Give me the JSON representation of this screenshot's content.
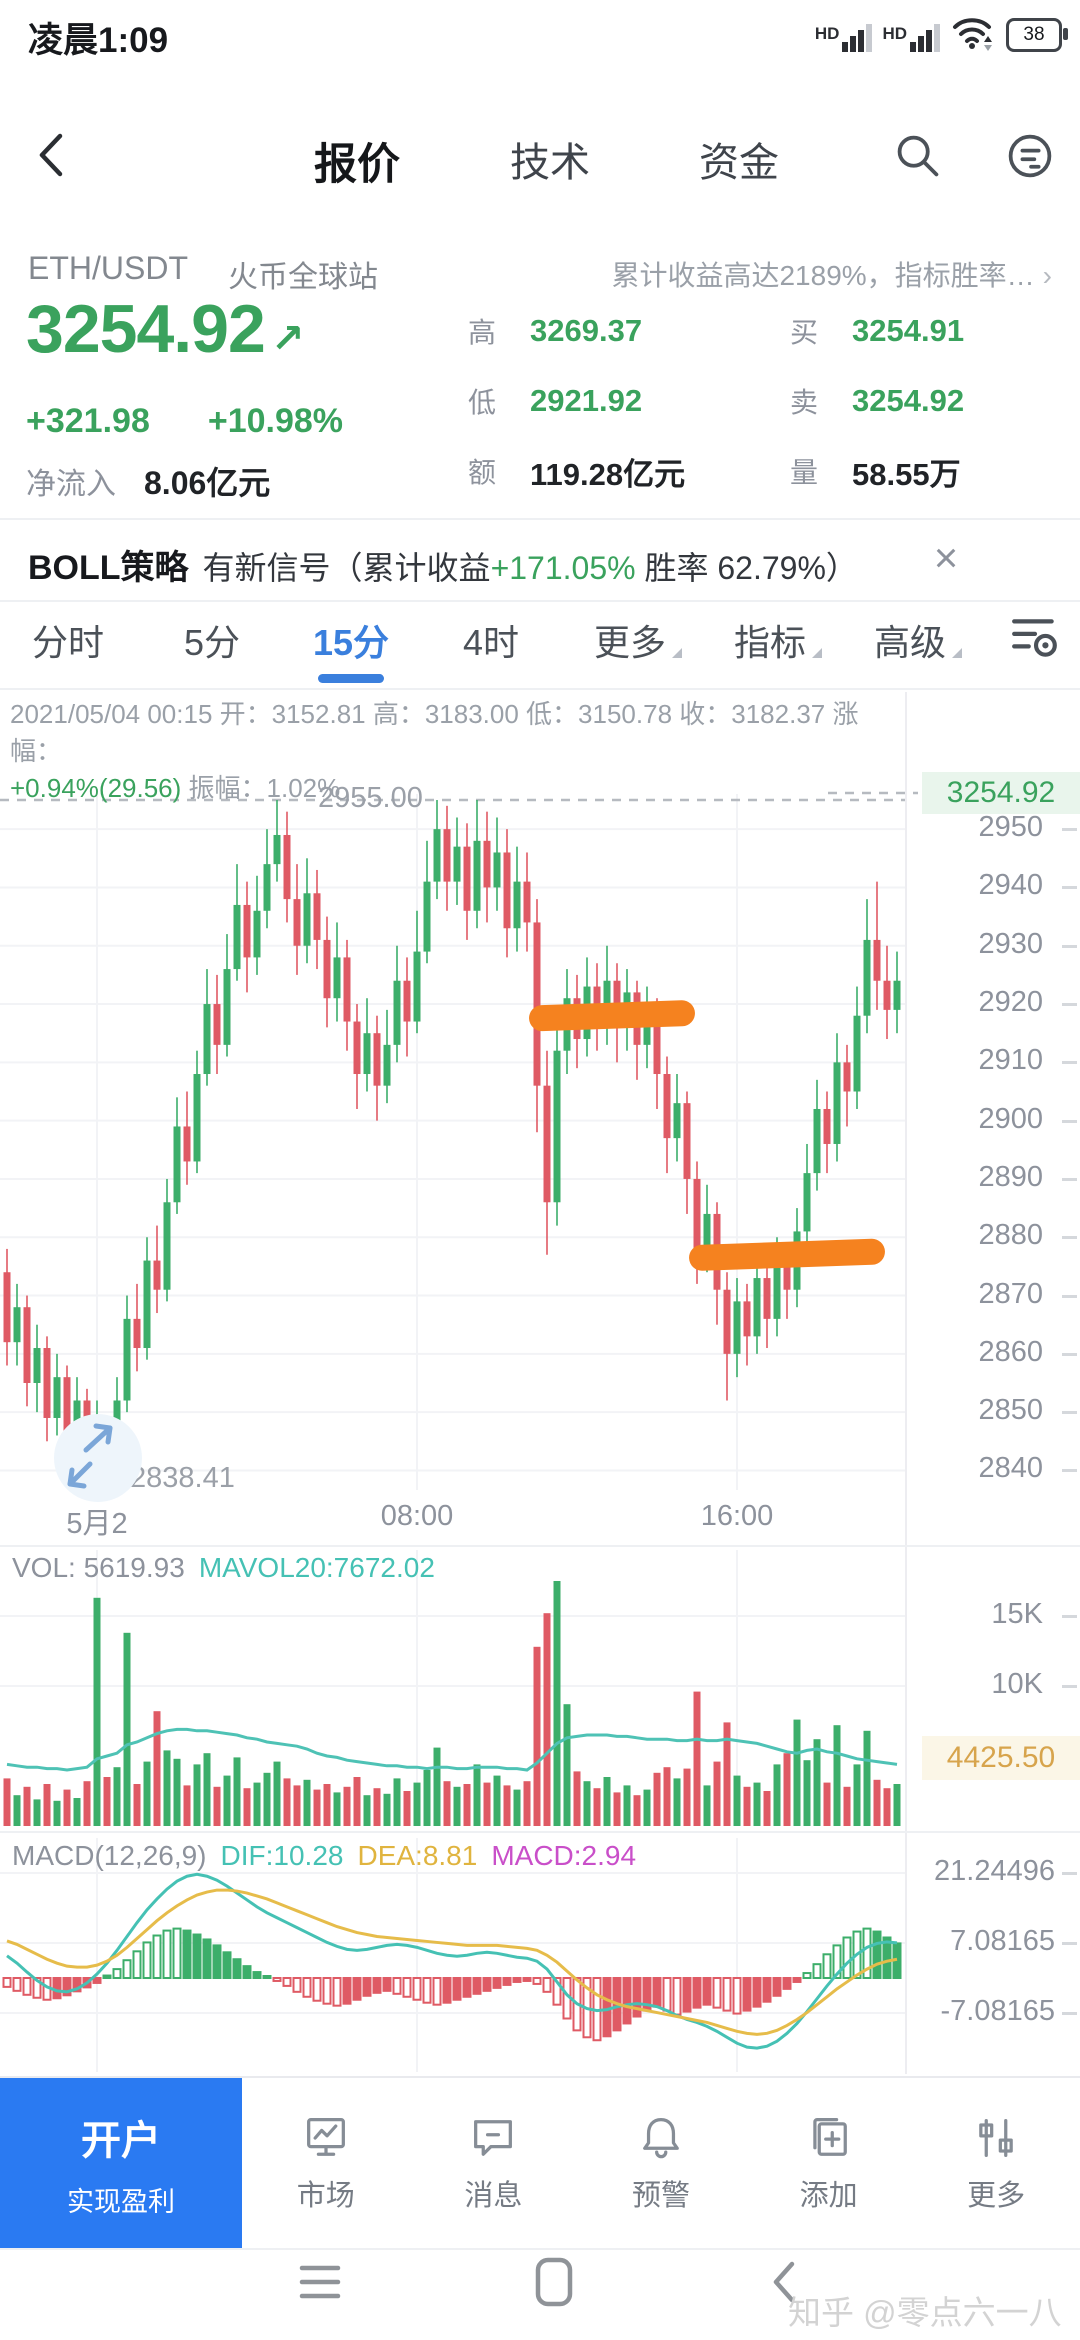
{
  "status_bar": {
    "time": "凌晨1:09",
    "hd": "HD",
    "battery": "38"
  },
  "header": {
    "tabs": [
      {
        "label": "报价"
      },
      {
        "label": "技术"
      },
      {
        "label": "资金"
      }
    ]
  },
  "symbol_row": {
    "pair": "ETH/USDT",
    "exchange": "火币全球站",
    "promo": "累计收益高达2189%，指标胜率…",
    "chevron": "›"
  },
  "quote": {
    "last": "3254.92",
    "arrow": "↗",
    "change": "+321.98",
    "change_pct": "+10.98%",
    "netflow_label": "净流入",
    "netflow_value": "8.06亿元",
    "stats": [
      {
        "label": "高",
        "value": "3269.37"
      },
      {
        "label": "买",
        "value": "3254.91"
      },
      {
        "label": "低",
        "value": "2921.92"
      },
      {
        "label": "卖",
        "value": "3254.92"
      },
      {
        "label": "额",
        "value": "119.28亿元"
      },
      {
        "label": "量",
        "value": "58.55万"
      }
    ]
  },
  "strategy_banner": {
    "title": "BOLL策略",
    "text1": "有新信号（累计收益",
    "gain": "+171.05%",
    "text2": " 胜率 62.79%）",
    "close": "×"
  },
  "period_tabs": {
    "items": [
      {
        "label": "分时"
      },
      {
        "label": "5分"
      },
      {
        "label": "15分"
      },
      {
        "label": "4时"
      }
    ],
    "active": "15分",
    "menus": [
      {
        "label": "更多"
      },
      {
        "label": "指标"
      },
      {
        "label": "高级"
      }
    ]
  },
  "ohlc_info": {
    "line1": "2021/05/04 00:15 开：3152.81 高：3183.00 低：3150.78 收：3182.37 涨幅：",
    "change": "+0.94%(29.56)",
    "rest": "振幅：1.02%"
  },
  "chart_data": {
    "type": "candlestick",
    "pair": "ETH/USDT",
    "interval": "15分",
    "price_axis": {
      "ticks": [
        2950,
        2940,
        2930,
        2920,
        2910,
        2900,
        2890,
        2880,
        2870,
        2860,
        2850,
        2840
      ],
      "high_line": {
        "value": 2955,
        "label": "2955.00"
      },
      "low_marker": {
        "value": 2838.41,
        "label": "2838.41"
      },
      "last_price_tag": "3254.92"
    },
    "x_axis": {
      "ticks": [
        {
          "index": 9,
          "label": "5月2"
        },
        {
          "index": 41,
          "label": "08:00"
        },
        {
          "index": 73,
          "label": "16:00"
        }
      ]
    },
    "candles": [
      [
        2874,
        2878,
        2858,
        2862
      ],
      [
        2862,
        2872,
        2858,
        2868
      ],
      [
        2868,
        2870,
        2851,
        2855
      ],
      [
        2855,
        2865,
        2850,
        2861
      ],
      [
        2861,
        2863,
        2845,
        2849
      ],
      [
        2849,
        2860,
        2846,
        2856
      ],
      [
        2856,
        2858,
        2842,
        2846
      ],
      [
        2846,
        2856,
        2843,
        2852
      ],
      [
        2852,
        2854,
        2839,
        2843
      ],
      [
        2843,
        2852,
        2840,
        2847
      ],
      [
        2847,
        2849,
        2838.41,
        2841
      ],
      [
        2841,
        2856,
        2839,
        2852
      ],
      [
        2852,
        2870,
        2850,
        2866
      ],
      [
        2866,
        2872,
        2857,
        2861
      ],
      [
        2861,
        2880,
        2859,
        2876
      ],
      [
        2876,
        2882,
        2867,
        2871
      ],
      [
        2871,
        2890,
        2869,
        2886
      ],
      [
        2886,
        2904,
        2884,
        2899
      ],
      [
        2899,
        2905,
        2889,
        2893
      ],
      [
        2893,
        2912,
        2891,
        2908
      ],
      [
        2908,
        2926,
        2906,
        2920
      ],
      [
        2920,
        2925,
        2908,
        2913
      ],
      [
        2913,
        2932,
        2911,
        2926
      ],
      [
        2926,
        2944,
        2924,
        2937
      ],
      [
        2937,
        2941,
        2922,
        2928
      ],
      [
        2928,
        2942,
        2925,
        2936
      ],
      [
        2936,
        2950,
        2933,
        2944
      ],
      [
        2944,
        2955,
        2941,
        2949
      ],
      [
        2949,
        2953,
        2934,
        2938
      ],
      [
        2938,
        2944,
        2925,
        2930
      ],
      [
        2930,
        2945,
        2927,
        2939
      ],
      [
        2939,
        2943,
        2926,
        2931
      ],
      [
        2931,
        2935,
        2916,
        2921
      ],
      [
        2921,
        2934,
        2917,
        2928
      ],
      [
        2928,
        2931,
        2912,
        2917
      ],
      [
        2917,
        2920,
        2902,
        2908
      ],
      [
        2908,
        2921,
        2905,
        2915
      ],
      [
        2915,
        2918,
        2900,
        2906
      ],
      [
        2906,
        2919,
        2903,
        2913
      ],
      [
        2913,
        2930,
        2910,
        2924
      ],
      [
        2924,
        2928,
        2911,
        2917
      ],
      [
        2917,
        2936,
        2915,
        2929
      ],
      [
        2929,
        2948,
        2927,
        2941
      ],
      [
        2941,
        2955,
        2938,
        2950
      ],
      [
        2950,
        2954,
        2936,
        2941
      ],
      [
        2941,
        2952,
        2937,
        2947
      ],
      [
        2947,
        2951,
        2931,
        2936
      ],
      [
        2936,
        2955,
        2933,
        2948
      ],
      [
        2948,
        2953,
        2934,
        2940
      ],
      [
        2940,
        2952,
        2936,
        2946
      ],
      [
        2946,
        2950,
        2928,
        2933
      ],
      [
        2933,
        2947,
        2929,
        2941
      ],
      [
        2941,
        2946,
        2929,
        2934
      ],
      [
        2934,
        2938,
        2898,
        2906
      ],
      [
        2906,
        2912,
        2877,
        2886
      ],
      [
        2886,
        2916,
        2882,
        2912
      ],
      [
        2912,
        2926,
        2908,
        2921
      ],
      [
        2921,
        2925,
        2909,
        2914
      ],
      [
        2914,
        2928,
        2911,
        2923
      ],
      [
        2923,
        2927,
        2912,
        2917
      ],
      [
        2917,
        2930,
        2913,
        2924
      ],
      [
        2924,
        2927,
        2910,
        2916
      ],
      [
        2916,
        2926,
        2912,
        2922
      ],
      [
        2922,
        2924,
        2907,
        2913
      ],
      [
        2913,
        2923,
        2909,
        2919
      ],
      [
        2919,
        2921,
        2902,
        2908
      ],
      [
        2908,
        2911,
        2891,
        2897
      ],
      [
        2897,
        2908,
        2893,
        2903
      ],
      [
        2903,
        2905,
        2884,
        2890
      ],
      [
        2890,
        2893,
        2872,
        2878
      ],
      [
        2878,
        2889,
        2874,
        2884
      ],
      [
        2884,
        2886,
        2865,
        2871
      ],
      [
        2871,
        2874,
        2852,
        2860
      ],
      [
        2860,
        2873,
        2856,
        2869
      ],
      [
        2869,
        2872,
        2858,
        2863
      ],
      [
        2863,
        2877,
        2860,
        2873
      ],
      [
        2873,
        2876,
        2861,
        2866
      ],
      [
        2866,
        2880,
        2863,
        2876
      ],
      [
        2876,
        2879,
        2866,
        2871
      ],
      [
        2871,
        2885,
        2868,
        2881
      ],
      [
        2881,
        2896,
        2878,
        2891
      ],
      [
        2891,
        2907,
        2888,
        2902
      ],
      [
        2902,
        2905,
        2891,
        2896
      ],
      [
        2896,
        2915,
        2893,
        2910
      ],
      [
        2910,
        2913,
        2899,
        2905
      ],
      [
        2905,
        2923,
        2902,
        2918
      ],
      [
        2918,
        2938,
        2915,
        2931
      ],
      [
        2931,
        2941,
        2919,
        2924
      ],
      [
        2924,
        2930,
        2914,
        2919
      ],
      [
        2919,
        2929,
        2915,
        2924
      ]
    ],
    "annotations": [
      {
        "type": "highlight-pill",
        "from": 53,
        "to": 68,
        "price": 2918
      },
      {
        "type": "highlight-pill",
        "from": 69,
        "to": 87,
        "price": 2877
      }
    ],
    "volume": {
      "legend": "VOL: 5619.93",
      "ma_legend": "MAVOL20:7672.02",
      "ticks": [
        {
          "value": 15,
          "label": "15K"
        },
        {
          "value": 10,
          "label": "10K"
        }
      ],
      "tag": "4425.50",
      "values": [
        3.4,
        2.2,
        2.8,
        1.9,
        3.0,
        1.8,
        2.6,
        2.0,
        3.2,
        16.3,
        3.5,
        4.2,
        13.8,
        3.0,
        4.6,
        8.2,
        5.4,
        4.8,
        2.9,
        4.4,
        5.2,
        2.8,
        3.6,
        4.9,
        2.7,
        3.1,
        3.8,
        4.6,
        3.4,
        2.9,
        3.3,
        2.6,
        3.0,
        2.4,
        2.8,
        3.5,
        2.2,
        2.7,
        2.3,
        3.4,
        2.5,
        3.1,
        4.0,
        5.6,
        3.2,
        2.8,
        3.0,
        4.4,
        3.1,
        3.6,
        2.9,
        2.6,
        3.2,
        12.8,
        15.2,
        17.5,
        8.7,
        3.9,
        3.2,
        2.7,
        3.5,
        2.4,
        2.9,
        2.2,
        2.6,
        3.8,
        4.2,
        3.4,
        4.1,
        9.6,
        2.9,
        4.6,
        7.4,
        3.6,
        2.8,
        3.1,
        2.5,
        4.4,
        5.2,
        7.6,
        4.7,
        6.2,
        3.1,
        7.2,
        2.8,
        4.4,
        6.8,
        3.3,
        2.7,
        3.0
      ],
      "mavol20": [
        4.4,
        4.3,
        4.2,
        4.2,
        4.1,
        4.1,
        4.0,
        4.1,
        4.2,
        4.8,
        5.0,
        5.2,
        5.8,
        6.0,
        6.3,
        6.6,
        6.8,
        6.9,
        6.9,
        6.8,
        6.8,
        6.7,
        6.6,
        6.5,
        6.3,
        6.2,
        6.0,
        5.9,
        5.8,
        5.7,
        5.5,
        5.2,
        5.0,
        4.9,
        4.7,
        4.6,
        4.5,
        4.4,
        4.3,
        4.3,
        4.2,
        4.2,
        4.1,
        4.2,
        4.2,
        4.1,
        4.1,
        4.2,
        4.2,
        4.2,
        4.1,
        4.1,
        4.0,
        4.5,
        5.2,
        5.9,
        6.3,
        6.4,
        6.5,
        6.5,
        6.5,
        6.4,
        6.4,
        6.3,
        6.2,
        6.2,
        6.2,
        6.1,
        6.1,
        6.2,
        6.1,
        6.1,
        6.2,
        6.1,
        6.0,
        5.9,
        5.7,
        5.5,
        5.3,
        5.2,
        5.4,
        5.5,
        5.3,
        5.2,
        5.0,
        4.8,
        4.7,
        4.6,
        4.5,
        4.4
      ]
    },
    "macd": {
      "legend": "MACD(12,26,9)",
      "dif_legend": "DIF:10.28",
      "dea_legend": "DEA:8.81",
      "macd_legend": "MACD:2.94",
      "ticks": [
        {
          "value": 21.24496,
          "label": "21.24496"
        },
        {
          "value": 7.08165,
          "label": "7.08165"
        },
        {
          "value": -7.08165,
          "label": "-7.08165"
        }
      ],
      "hist": [
        -1.8,
        -2.6,
        -3.4,
        -4.0,
        -4.4,
        -4.1,
        -3.5,
        -2.7,
        -1.9,
        -1.0,
        0.5,
        1.8,
        3.6,
        5.4,
        7.2,
        8.6,
        9.6,
        10.0,
        9.6,
        8.8,
        7.8,
        6.6,
        5.2,
        3.8,
        2.4,
        1.2,
        0.4,
        -0.6,
        -1.6,
        -2.8,
        -3.8,
        -4.6,
        -5.2,
        -5.6,
        -5.2,
        -4.4,
        -3.6,
        -3.0,
        -2.6,
        -3.2,
        -3.8,
        -4.4,
        -5.0,
        -5.4,
        -5.0,
        -4.4,
        -3.8,
        -3.2,
        -2.6,
        -2.0,
        -1.4,
        -0.8,
        -0.6,
        -1.2,
        -2.8,
        -5.4,
        -8.2,
        -10.6,
        -12.0,
        -12.6,
        -11.8,
        -10.6,
        -9.2,
        -7.8,
        -6.6,
        -5.8,
        -6.6,
        -7.4,
        -6.8,
        -6.0,
        -5.4,
        -6.0,
        -6.6,
        -7.2,
        -6.6,
        -5.8,
        -4.8,
        -3.6,
        -2.2,
        -0.8,
        1.0,
        2.8,
        4.8,
        6.6,
        8.2,
        9.4,
        10.0,
        9.4,
        8.2,
        7.0
      ],
      "dif": [
        4.5,
        3.0,
        1.2,
        -0.5,
        -1.8,
        -2.6,
        -2.8,
        -2.2,
        -1.0,
        0.8,
        3.0,
        5.6,
        8.4,
        11.2,
        13.8,
        16.0,
        18.0,
        19.6,
        20.6,
        21.0,
        20.6,
        19.8,
        18.6,
        17.2,
        15.8,
        14.4,
        13.2,
        12.2,
        11.2,
        10.2,
        9.2,
        8.2,
        7.2,
        6.4,
        5.8,
        5.6,
        5.8,
        6.2,
        6.6,
        6.8,
        6.6,
        6.2,
        5.6,
        5.0,
        4.6,
        4.4,
        4.6,
        5.0,
        5.2,
        5.0,
        4.6,
        4.2,
        4.0,
        3.4,
        1.8,
        -0.8,
        -3.4,
        -5.2,
        -6.2,
        -6.6,
        -6.4,
        -5.8,
        -5.4,
        -5.2,
        -5.4,
        -5.8,
        -6.6,
        -7.6,
        -8.4,
        -9.0,
        -9.8,
        -10.8,
        -12.0,
        -13.2,
        -14.0,
        -14.2,
        -13.8,
        -12.8,
        -11.2,
        -9.2,
        -6.8,
        -4.2,
        -1.6,
        0.8,
        3.0,
        4.8,
        6.2,
        7.0,
        7.3,
        7.1
      ],
      "dea": [
        7.5,
        6.8,
        5.8,
        4.8,
        3.8,
        3.0,
        2.4,
        2.2,
        2.2,
        2.6,
        3.4,
        4.6,
        6.2,
        8.0,
        9.8,
        11.6,
        13.2,
        14.6,
        15.8,
        16.8,
        17.4,
        17.8,
        17.8,
        17.6,
        17.2,
        16.6,
        16.0,
        15.2,
        14.4,
        13.6,
        12.8,
        12.0,
        11.2,
        10.4,
        9.8,
        9.2,
        8.8,
        8.4,
        8.2,
        8.0,
        7.8,
        7.6,
        7.4,
        7.2,
        7.0,
        6.8,
        6.6,
        6.6,
        6.6,
        6.6,
        6.4,
        6.2,
        6.0,
        5.6,
        4.6,
        3.2,
        1.4,
        -0.4,
        -2.0,
        -3.4,
        -4.4,
        -5.2,
        -5.8,
        -6.2,
        -6.6,
        -7.0,
        -7.4,
        -7.8,
        -8.2,
        -8.6,
        -9.0,
        -9.6,
        -10.2,
        -10.8,
        -11.2,
        -11.4,
        -11.2,
        -10.6,
        -9.6,
        -8.4,
        -7.0,
        -5.4,
        -3.8,
        -2.2,
        -0.8,
        0.6,
        1.8,
        2.8,
        3.4,
        3.8
      ]
    },
    "colors": {
      "up": "#3cae6a",
      "down": "#df5a64",
      "ma_line": "#4ec2b5",
      "dif_line": "#45c1b4",
      "dea_line": "#e6bc4a",
      "highlight": "#f5821f",
      "grid": "#f2f3f6",
      "dashed": "#b6bac0"
    }
  },
  "bottom_nav": {
    "cta": {
      "line1": "开户",
      "line2": "实现盈利"
    },
    "items": [
      {
        "label": "市场",
        "icon": "market-chart-icon"
      },
      {
        "label": "消息",
        "icon": "message-icon"
      },
      {
        "label": "预警",
        "icon": "alert-bell-icon"
      },
      {
        "label": "添加",
        "icon": "add-page-icon"
      },
      {
        "label": "更多",
        "icon": "sliders-icon"
      }
    ]
  },
  "watermark": "知乎 @零点六一八"
}
